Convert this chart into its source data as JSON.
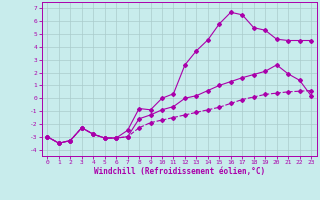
{
  "xlabel": "Windchill (Refroidissement éolien,°C)",
  "bg_color": "#c8ecec",
  "line_color": "#aa00aa",
  "grid_color": "#aacccc",
  "xlim": [
    -0.5,
    23.5
  ],
  "ylim": [
    -4.5,
    7.5
  ],
  "xticks": [
    0,
    1,
    2,
    3,
    4,
    5,
    6,
    7,
    8,
    9,
    10,
    11,
    12,
    13,
    14,
    15,
    16,
    17,
    18,
    19,
    20,
    21,
    22,
    23
  ],
  "yticks": [
    -4,
    -3,
    -2,
    -1,
    0,
    1,
    2,
    3,
    4,
    5,
    6,
    7
  ],
  "line1_x": [
    0,
    1,
    2,
    3,
    4,
    5,
    6,
    7,
    8,
    9,
    10,
    11,
    12,
    13,
    14,
    15,
    16,
    17,
    18,
    19,
    20,
    21,
    22,
    23
  ],
  "line1_y": [
    -3.0,
    -3.5,
    -3.3,
    -2.3,
    -2.8,
    -3.1,
    -3.1,
    -2.5,
    -0.8,
    -0.9,
    0.0,
    0.35,
    2.6,
    3.7,
    4.55,
    5.8,
    6.7,
    6.5,
    5.5,
    5.3,
    4.6,
    4.5,
    4.5,
    4.5
  ],
  "line2_x": [
    0,
    1,
    2,
    3,
    4,
    5,
    6,
    7,
    8,
    9,
    10,
    11,
    12,
    13,
    14,
    15,
    16,
    17,
    18,
    19,
    20,
    21,
    22,
    23
  ],
  "line2_y": [
    -3.0,
    -3.5,
    -3.3,
    -2.3,
    -2.8,
    -3.1,
    -3.1,
    -3.0,
    -1.6,
    -1.3,
    -0.9,
    -0.65,
    0.0,
    0.2,
    0.6,
    1.0,
    1.3,
    1.6,
    1.85,
    2.1,
    2.6,
    1.9,
    1.4,
    0.2
  ],
  "line3_x": [
    0,
    1,
    2,
    3,
    4,
    5,
    6,
    7,
    8,
    9,
    10,
    11,
    12,
    13,
    14,
    15,
    16,
    17,
    18,
    19,
    20,
    21,
    22,
    23
  ],
  "line3_y": [
    -3.0,
    -3.5,
    -3.3,
    -2.3,
    -2.8,
    -3.1,
    -3.1,
    -3.0,
    -2.3,
    -1.9,
    -1.7,
    -1.5,
    -1.3,
    -1.1,
    -0.9,
    -0.7,
    -0.4,
    -0.1,
    0.1,
    0.3,
    0.4,
    0.5,
    0.55,
    0.6
  ],
  "xlabel_fontsize": 5.5,
  "tick_fontsize": 4.5,
  "marker_size": 2.0,
  "line_width": 0.8
}
